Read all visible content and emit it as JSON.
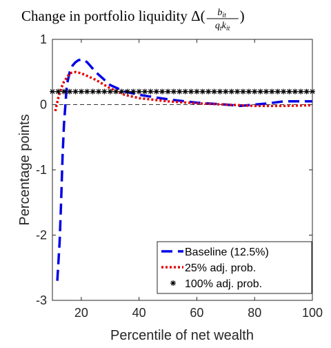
{
  "chart_data": {
    "type": "line",
    "title": {
      "text": "Change in portfolio liquidity Δ(",
      "numerator": "b",
      "numerator_sub": "it",
      "denominator_1": "q",
      "denominator_1_sub": "t",
      "denominator_2": "k",
      "denominator_2_sub": "it",
      "close": ")"
    },
    "x_label": "Percentile of net wealth",
    "y_label": "Percentage points",
    "xlim": [
      10,
      100
    ],
    "xticks": [
      20,
      40,
      60,
      80,
      100
    ],
    "ylim": [
      -3,
      1
    ],
    "yticks": [
      -3,
      -2,
      -1,
      0,
      1
    ],
    "hline": 0,
    "legend": "lower right",
    "series": [
      {
        "name": "Baseline (12.5%)",
        "color": "#0000e6",
        "style": "dashed",
        "x": [
          11.7,
          12.5,
          13,
          13.5,
          14,
          15,
          16,
          17,
          18,
          19,
          20,
          21,
          22,
          25,
          30,
          35,
          40,
          50,
          60,
          70,
          75,
          80,
          85,
          90,
          95,
          100
        ],
        "values": [
          -2.7,
          -2.1,
          -1.5,
          -0.8,
          -0.3,
          0.3,
          0.5,
          0.6,
          0.65,
          0.68,
          0.69,
          0.68,
          0.65,
          0.5,
          0.3,
          0.2,
          0.15,
          0.08,
          0.03,
          0.0,
          -0.02,
          0.0,
          0.02,
          0.05,
          0.05,
          0.05
        ]
      },
      {
        "name": "25% adj. prob.",
        "color": "#e60000",
        "style": "dotted",
        "x": [
          11,
          12,
          13,
          14,
          16,
          18,
          20,
          25,
          30,
          35,
          40,
          50,
          60,
          70,
          80,
          90,
          100
        ],
        "values": [
          -0.1,
          0.1,
          0.25,
          0.35,
          0.48,
          0.5,
          0.48,
          0.38,
          0.25,
          0.15,
          0.1,
          0.05,
          0.02,
          0.0,
          -0.02,
          -0.02,
          -0.01
        ]
      },
      {
        "name": "100% adj. prob.",
        "color": "#000000",
        "style": "markers",
        "x": [
          10,
          12,
          14,
          16,
          18,
          20,
          22,
          24,
          26,
          28,
          30,
          32,
          34,
          36,
          38,
          40,
          42,
          44,
          46,
          48,
          50,
          52,
          54,
          56,
          58,
          60,
          62,
          64,
          66,
          68,
          70,
          72,
          74,
          76,
          78,
          80,
          82,
          84,
          86,
          88,
          90,
          92,
          94,
          96,
          98,
          100
        ],
        "values": [
          0.2,
          0.2,
          0.2,
          0.2,
          0.2,
          0.2,
          0.2,
          0.2,
          0.2,
          0.2,
          0.2,
          0.2,
          0.2,
          0.2,
          0.2,
          0.2,
          0.2,
          0.2,
          0.2,
          0.2,
          0.2,
          0.2,
          0.2,
          0.2,
          0.2,
          0.2,
          0.2,
          0.2,
          0.2,
          0.2,
          0.2,
          0.2,
          0.2,
          0.2,
          0.2,
          0.2,
          0.2,
          0.2,
          0.2,
          0.2,
          0.2,
          0.2,
          0.2,
          0.2,
          0.2,
          0.2
        ]
      }
    ]
  }
}
